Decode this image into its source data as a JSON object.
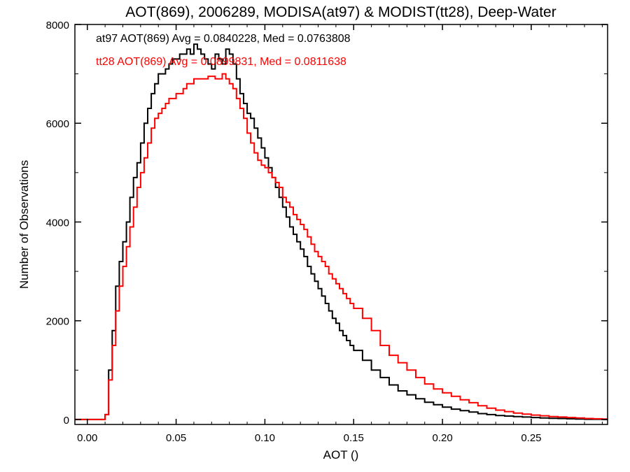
{
  "chart_data": {
    "type": "line",
    "title": "AOT(869), 2006289, MODISA(at97) & MODIST(tt28), Deep-Water",
    "xlabel": "AOT ()",
    "ylabel": "Number of Observations",
    "xlim": [
      -0.007,
      0.293
    ],
    "ylim": [
      -100,
      8000
    ],
    "xticks": [
      0.0,
      0.05,
      0.1,
      0.15,
      0.2,
      0.25
    ],
    "xtick_labels": [
      "0.00",
      "0.05",
      "0.10",
      "0.15",
      "0.20",
      "0.25"
    ],
    "yticks": [
      0,
      2000,
      4000,
      6000,
      8000
    ],
    "ytick_labels": [
      "0",
      "2000",
      "4000",
      "6000",
      "8000"
    ],
    "grid": false,
    "annotations": [
      {
        "text": "at97 AOT(869) Avg = 0.0840228, Med = 0.0763808",
        "color": "#000000"
      },
      {
        "text": "tt28 AOT(869) Avg = 0.0899831, Med = 0.0811638",
        "color": "#ff0000"
      }
    ],
    "series": [
      {
        "color": "#000000",
        "step": true,
        "x": [
          -0.007,
          0.0,
          0.005,
          0.008,
          0.01,
          0.012,
          0.014,
          0.016,
          0.018,
          0.02,
          0.022,
          0.024,
          0.026,
          0.028,
          0.03,
          0.032,
          0.034,
          0.036,
          0.038,
          0.04,
          0.042,
          0.044,
          0.046,
          0.048,
          0.05,
          0.052,
          0.054,
          0.056,
          0.058,
          0.06,
          0.062,
          0.064,
          0.066,
          0.068,
          0.07,
          0.072,
          0.074,
          0.076,
          0.078,
          0.08,
          0.082,
          0.084,
          0.086,
          0.088,
          0.09,
          0.092,
          0.094,
          0.096,
          0.098,
          0.1,
          0.102,
          0.104,
          0.106,
          0.108,
          0.11,
          0.112,
          0.114,
          0.116,
          0.118,
          0.12,
          0.122,
          0.124,
          0.126,
          0.128,
          0.13,
          0.132,
          0.134,
          0.136,
          0.138,
          0.14,
          0.142,
          0.144,
          0.146,
          0.148,
          0.15,
          0.155,
          0.16,
          0.165,
          0.17,
          0.175,
          0.18,
          0.185,
          0.19,
          0.195,
          0.2,
          0.205,
          0.21,
          0.215,
          0.22,
          0.225,
          0.23,
          0.235,
          0.24,
          0.245,
          0.25,
          0.255,
          0.26,
          0.265,
          0.27,
          0.275,
          0.28,
          0.285,
          0.29
        ],
        "y": [
          0,
          0,
          0,
          0,
          100,
          1000,
          1800,
          2700,
          3200,
          3600,
          4000,
          4500,
          4900,
          5200,
          5600,
          6000,
          6300,
          6600,
          6800,
          7000,
          7000,
          7100,
          7200,
          7300,
          7300,
          7400,
          7400,
          7500,
          7400,
          7600,
          7500,
          7400,
          7300,
          7200,
          7100,
          7400,
          7300,
          7200,
          7500,
          7400,
          7200,
          6900,
          6600,
          6400,
          6200,
          6100,
          5900,
          5700,
          5500,
          5300,
          5100,
          4900,
          4700,
          4500,
          4300,
          4100,
          3900,
          3750,
          3600,
          3450,
          3300,
          3100,
          2950,
          2800,
          2650,
          2500,
          2350,
          2200,
          2050,
          1950,
          1800,
          1700,
          1600,
          1500,
          1400,
          1200,
          1000,
          850,
          700,
          580,
          500,
          420,
          350,
          300,
          250,
          210,
          180,
          150,
          120,
          100,
          80,
          70,
          60,
          50,
          40,
          30,
          25,
          20,
          15,
          10,
          5,
          5,
          0
        ]
      },
      {
        "color": "#ff0000",
        "step": true,
        "x": [
          -0.007,
          0.0,
          0.005,
          0.008,
          0.01,
          0.012,
          0.014,
          0.016,
          0.018,
          0.02,
          0.022,
          0.024,
          0.026,
          0.028,
          0.03,
          0.032,
          0.034,
          0.036,
          0.038,
          0.04,
          0.042,
          0.044,
          0.046,
          0.048,
          0.05,
          0.052,
          0.054,
          0.056,
          0.058,
          0.06,
          0.062,
          0.064,
          0.066,
          0.068,
          0.07,
          0.072,
          0.074,
          0.076,
          0.078,
          0.08,
          0.082,
          0.084,
          0.086,
          0.088,
          0.09,
          0.092,
          0.094,
          0.096,
          0.098,
          0.1,
          0.102,
          0.104,
          0.106,
          0.108,
          0.11,
          0.112,
          0.114,
          0.116,
          0.118,
          0.12,
          0.122,
          0.124,
          0.126,
          0.128,
          0.13,
          0.132,
          0.134,
          0.136,
          0.138,
          0.14,
          0.142,
          0.144,
          0.146,
          0.148,
          0.15,
          0.155,
          0.16,
          0.165,
          0.17,
          0.175,
          0.18,
          0.185,
          0.19,
          0.195,
          0.2,
          0.205,
          0.21,
          0.215,
          0.22,
          0.225,
          0.23,
          0.235,
          0.24,
          0.245,
          0.25,
          0.255,
          0.26,
          0.265,
          0.27,
          0.275,
          0.28,
          0.285,
          0.29
        ],
        "y": [
          0,
          0,
          0,
          0,
          100,
          800,
          1500,
          2200,
          2700,
          3100,
          3500,
          3900,
          4300,
          4700,
          5000,
          5300,
          5600,
          5900,
          6100,
          6200,
          6300,
          6400,
          6500,
          6500,
          6600,
          6600,
          6700,
          6800,
          6800,
          6900,
          6900,
          6900,
          6900,
          6950,
          6950,
          6900,
          6900,
          7000,
          6900,
          6800,
          6700,
          6500,
          6300,
          6100,
          5800,
          5600,
          5400,
          5250,
          5150,
          5100,
          5000,
          4900,
          4800,
          4700,
          4500,
          4400,
          4300,
          4150,
          4050,
          3950,
          3850,
          3700,
          3550,
          3400,
          3300,
          3200,
          3100,
          2950,
          2850,
          2750,
          2650,
          2550,
          2450,
          2350,
          2250,
          2050,
          1800,
          1500,
          1300,
          1150,
          1000,
          850,
          720,
          620,
          540,
          470,
          400,
          340,
          280,
          230,
          190,
          160,
          130,
          110,
          90,
          75,
          60,
          50,
          40,
          30,
          20,
          15,
          10
        ]
      }
    ]
  }
}
